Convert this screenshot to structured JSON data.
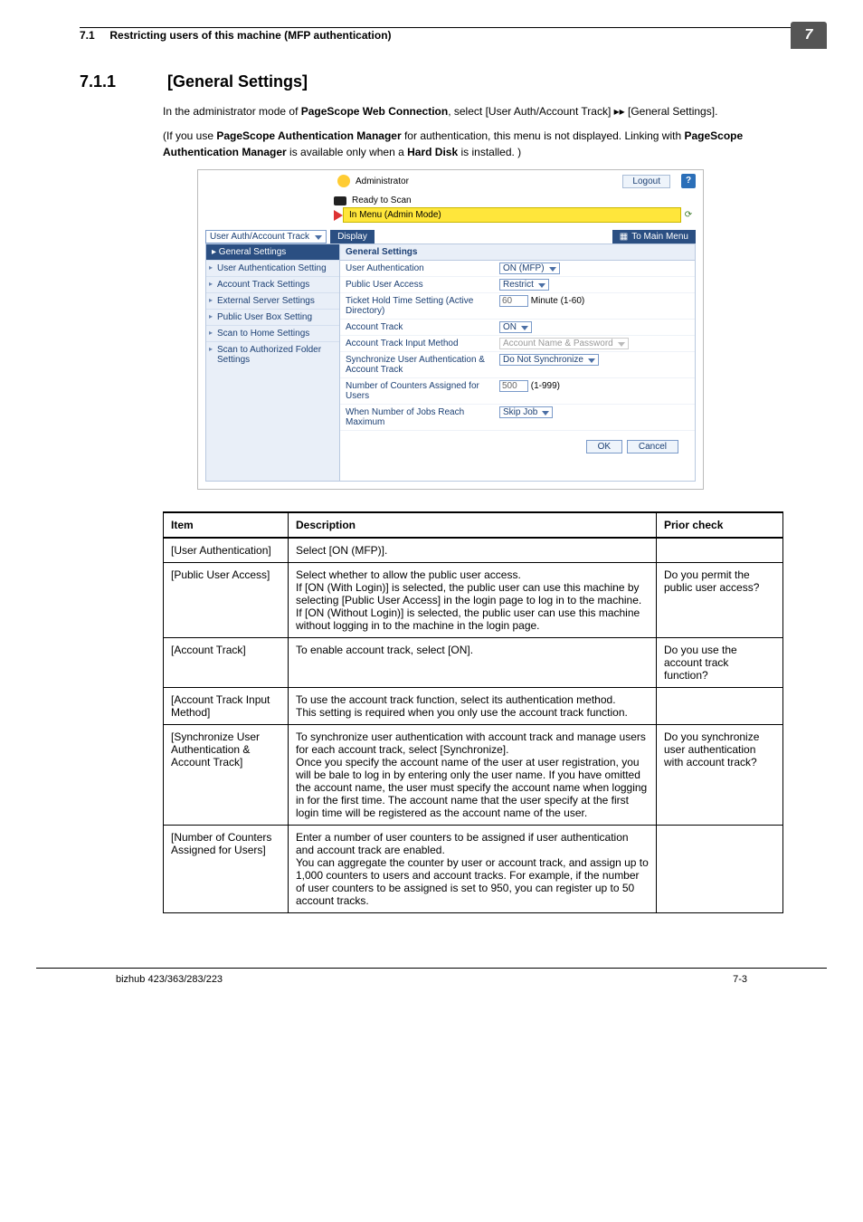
{
  "page": {
    "header_section": "7.1",
    "header_title": "Restricting users of this machine (MFP authentication)",
    "chapter_tab": "7",
    "section_number": "7.1.1",
    "section_title": "[General Settings]",
    "intro_1_a": "In the administrator mode of ",
    "intro_1_b": "PageScope Web Connection",
    "intro_1_c": ", select [User Auth/Account Track] ▸▸ [General Settings].",
    "intro_2_a": "(If you use ",
    "intro_2_b": "PageScope Authentication Manager",
    "intro_2_c": " for authentication, this menu is not displayed. Linking with ",
    "intro_2_d": "PageScope Authentication Manager",
    "intro_2_e": " is available only when a ",
    "intro_2_f": "Hard Disk",
    "intro_2_g": " is installed. )",
    "footer_model": "bizhub 423/363/283/223",
    "footer_page": "7-3"
  },
  "screenshot": {
    "admin_label": "Administrator",
    "logout": "Logout",
    "help": "?",
    "ready": "Ready to Scan",
    "in_menu": "In Menu (Admin Mode)",
    "scope_dropdown": "User Auth/Account Track",
    "display_btn": "Display",
    "main_menu_btn": "To Main Menu",
    "sidebar": {
      "head": "▸ General Settings",
      "items": [
        "User Authentication Setting",
        "Account Track Settings",
        "External Server Settings",
        "Public User Box Setting",
        "Scan to Home Settings",
        "Scan to Authorized Folder Settings"
      ]
    },
    "panel_title": "General Settings",
    "rows": [
      {
        "label": "User Authentication",
        "val": "ON (MFP)",
        "type": "select"
      },
      {
        "label": "Public User Access",
        "val": "Restrict",
        "type": "select"
      },
      {
        "label": "Ticket Hold Time Setting (Active Directory)",
        "val": "60",
        "suffix": "Minute (1-60)",
        "type": "input"
      },
      {
        "label": "Account Track",
        "val": "ON",
        "type": "select"
      },
      {
        "label": "Account Track Input Method",
        "val": "Account Name & Password",
        "type": "select",
        "disabled": true
      },
      {
        "label": "Synchronize User Authentication & Account Track",
        "val": "Do Not Synchronize",
        "type": "select"
      },
      {
        "label": "Number of Counters Assigned for Users",
        "val": "500",
        "suffix": "(1-999)",
        "type": "input"
      },
      {
        "label": "When Number of Jobs Reach Maximum",
        "val": "Skip Job",
        "type": "select"
      }
    ],
    "ok": "OK",
    "cancel": "Cancel"
  },
  "table": {
    "head": {
      "c1": "Item",
      "c2": "Description",
      "c3": "Prior check"
    },
    "rows": [
      {
        "c1": "[User Authentication]",
        "c2": "Select [ON (MFP)].",
        "c3": ""
      },
      {
        "c1": "[Public User Access]",
        "c2": "Select whether to allow the public user access.\nIf [ON (With Login)] is selected, the public user can use this machine by selecting [Public User Access] in the login page to log in to the machine.\nIf [ON (Without Login)] is selected, the public user can use this machine without logging in to the machine in the login page.",
        "c3": "Do you permit the public user access?"
      },
      {
        "c1": "[Account Track]",
        "c2": "To enable account track, select [ON].",
        "c3": "Do you use the account track function?"
      },
      {
        "c1": "[Account Track Input Method]",
        "c2": "To use the account track function, select its authentication method.\nThis setting is required when you only use the account track function.",
        "c3": ""
      },
      {
        "c1": "[Synchronize User Authentication & Account Track]",
        "c2": "To synchronize user authentication with account track and manage users for each account track, select [Synchronize].\nOnce you specify the account name of the user at user registration, you will be bale to log in by entering only the user name. If you have omitted the account name, the user must specify the account name when logging in for the first time. The account name that the user specify at the first login time will be registered as the account name of the user.",
        "c3": "Do you synchronize user authentication with account track?"
      },
      {
        "c1": "[Number of Counters Assigned for Users]",
        "c2": "Enter a number of user counters to be assigned if user authentication and account track are enabled.\nYou can aggregate the counter by user or account track, and assign up to 1,000 counters to users and account tracks. For example, if the number of user counters to be assigned is set to 950, you can register up to 50 account tracks.",
        "c3": ""
      }
    ]
  }
}
